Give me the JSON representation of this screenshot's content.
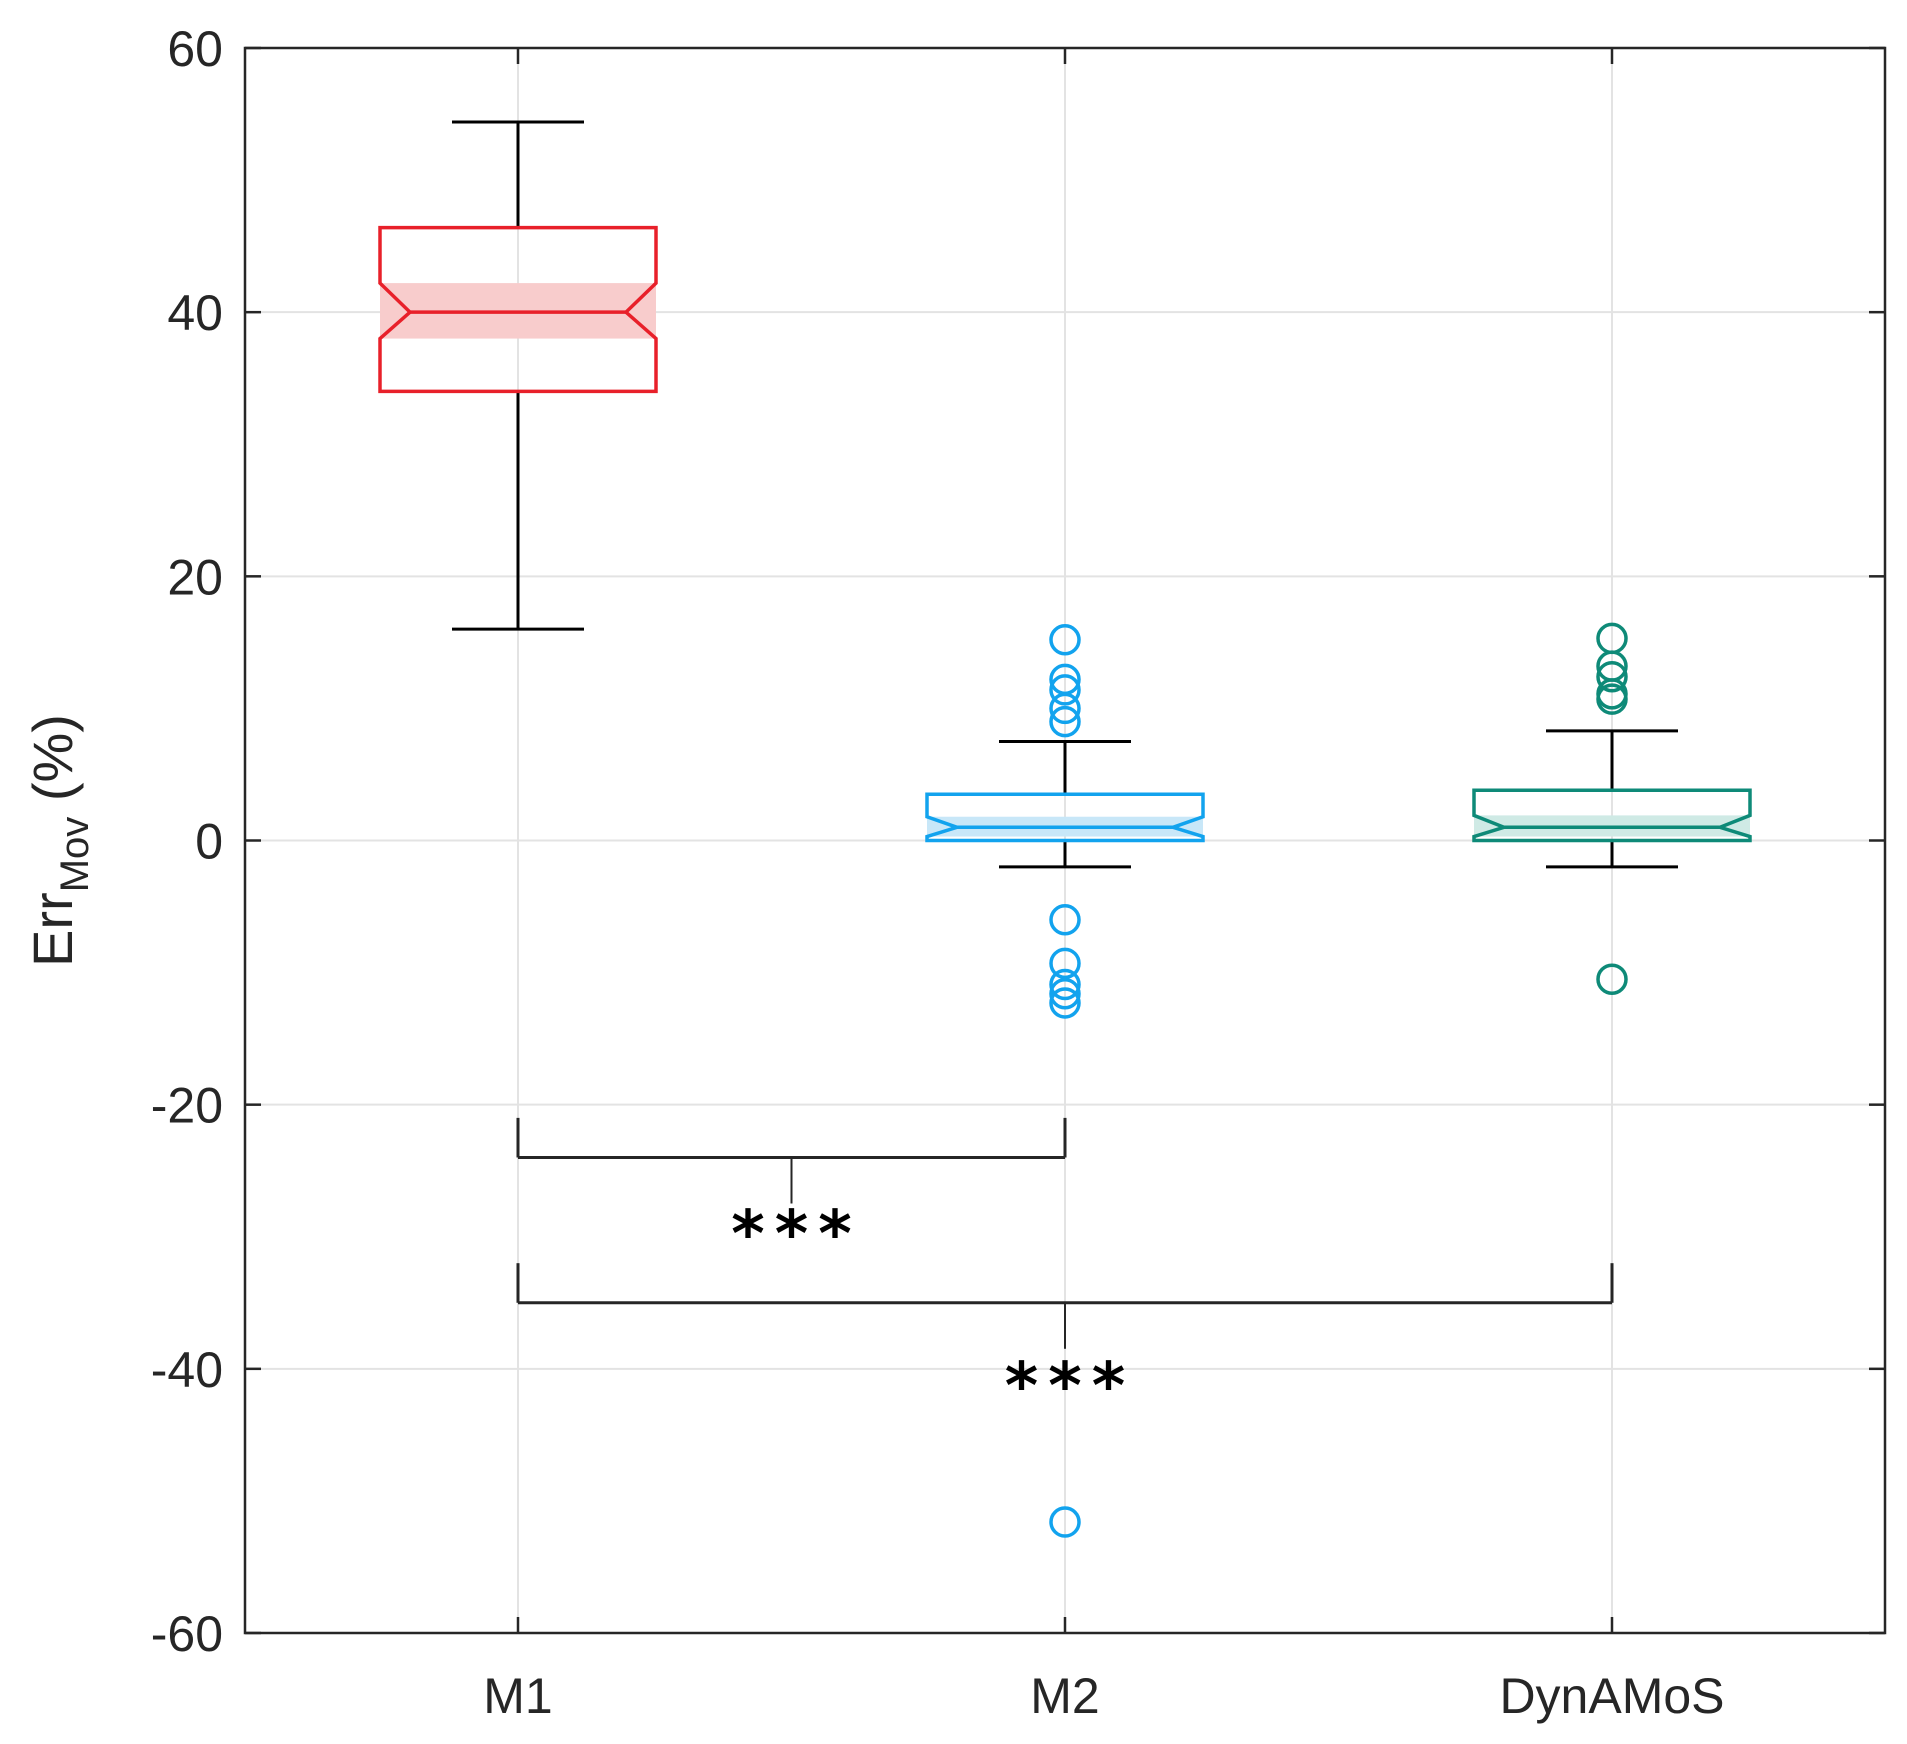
{
  "chart_data": {
    "type": "boxplot",
    "ylabel_main": "Err",
    "ylabel_sub": "Mov",
    "ylabel_unit": " (%)",
    "ylim": [
      -60,
      60
    ],
    "yticks": [
      -60,
      -40,
      -20,
      0,
      20,
      40,
      60
    ],
    "grid": true,
    "categories": [
      "M1",
      "M2",
      "DynAMoS"
    ],
    "boxes": [
      {
        "name": "M1",
        "color": "#e8202a",
        "fill": "#f8cccc",
        "whisker_low": 16,
        "q1": 34,
        "notch_low": 38,
        "median": 40,
        "notch_high": 42.2,
        "q3": 46.4,
        "whisker_high": 54.4,
        "outliers": []
      },
      {
        "name": "M2",
        "color": "#12a3ee",
        "fill": "#c8e7f8",
        "whisker_low": -2,
        "q1": 0,
        "notch_low": 0.3,
        "median": 1,
        "notch_high": 1.8,
        "q3": 3.5,
        "whisker_high": 7.5,
        "outliers": [
          15.2,
          12.2,
          11.4,
          10,
          9,
          -6,
          -9.3,
          -10.9,
          -11.6,
          -12.3,
          -51.6
        ]
      },
      {
        "name": "DynAMoS",
        "color": "#0e8a78",
        "fill": "#cfeae5",
        "whisker_low": -2,
        "q1": 0,
        "notch_low": 0.3,
        "median": 1,
        "notch_high": 1.9,
        "q3": 3.8,
        "whisker_high": 8.3,
        "outliers": [
          15.3,
          13.2,
          12.4,
          11.1,
          10.7,
          -10.5
        ]
      }
    ],
    "significance": [
      {
        "from": "M1",
        "to": "M2",
        "bracket_y": -24,
        "tick_from": -21,
        "label": "***",
        "label_y": -29.5
      },
      {
        "from": "M1",
        "to": "DynAMoS",
        "bracket_y": -35,
        "tick_from": -32,
        "label": "***",
        "label_y": -41
      }
    ]
  }
}
